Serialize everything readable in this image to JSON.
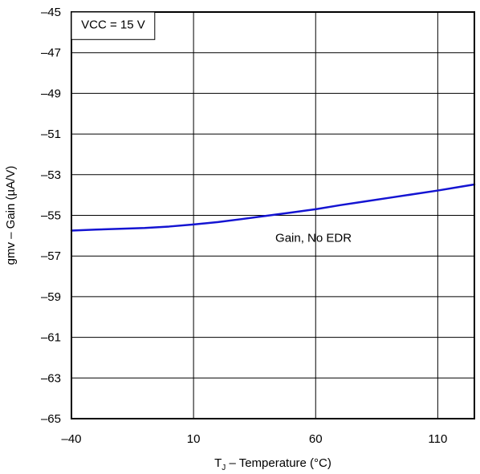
{
  "chart_data": {
    "type": "line",
    "title": "",
    "xlabel": "T_J – Temperature (°C)",
    "xlabel_main": "T",
    "xlabel_sub": "J",
    "xlabel_rest": " – Temperature (°C)",
    "ylabel": "gmv – Gain (µA/V)",
    "xlim": [
      -40,
      125
    ],
    "ylim": [
      -65,
      -45
    ],
    "x_ticks": [
      -40,
      10,
      60,
      110
    ],
    "x_tick_labels": [
      "–40",
      "10",
      "60",
      "110"
    ],
    "y_ticks": [
      -45,
      -47,
      -49,
      -51,
      -53,
      -55,
      -57,
      -59,
      -61,
      -63,
      -65
    ],
    "y_tick_labels": [
      "–45",
      "–47",
      "–49",
      "–51",
      "–53",
      "–55",
      "–57",
      "–59",
      "–61",
      "–63",
      "–65"
    ],
    "grid": true,
    "annotations": [
      {
        "text": "VCC = 15 V",
        "x": -36,
        "y": -45.8,
        "boxed": true
      },
      {
        "text": "Gain, No EDR",
        "x": 43.5,
        "y": -56.3,
        "boxed": false
      }
    ],
    "series": [
      {
        "color": "#1414d2",
        "x": [
          -40,
          -30,
          -20,
          -10,
          0,
          10,
          20,
          30,
          40,
          50,
          60,
          70,
          80,
          90,
          100,
          110,
          120,
          125
        ],
        "y": [
          -55.75,
          -55.7,
          -55.66,
          -55.62,
          -55.55,
          -55.45,
          -55.33,
          -55.18,
          -55.02,
          -54.86,
          -54.7,
          -54.5,
          -54.32,
          -54.14,
          -53.96,
          -53.78,
          -53.58,
          -53.48
        ]
      }
    ]
  }
}
